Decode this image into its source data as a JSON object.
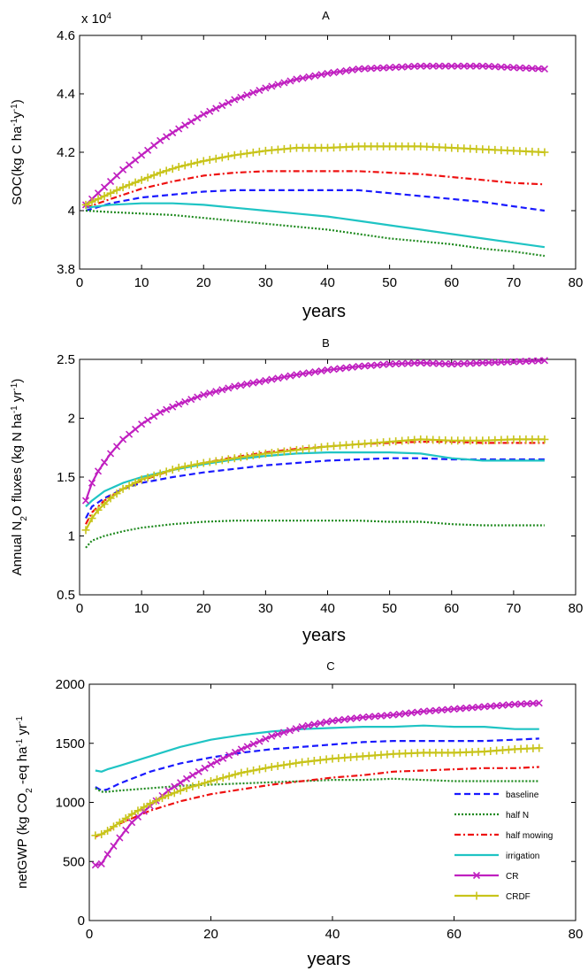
{
  "styles": {
    "baseline": {
      "color": "#1a1aff",
      "dash": "7,4",
      "marker": "none"
    },
    "half_n": {
      "color": "#1f8a1f",
      "dash": "2,2",
      "marker": "none"
    },
    "half_mowing": {
      "color": "#ee1111",
      "dash": "7,3,2,3",
      "marker": "none"
    },
    "irrigation": {
      "color": "#1fc4c4",
      "dash": "",
      "marker": "none"
    },
    "cr": {
      "color": "#c020c0",
      "dash": "",
      "marker": "x"
    },
    "crdf": {
      "color": "#c8c41a",
      "dash": "",
      "marker": "plus"
    }
  },
  "chart_data": [
    {
      "type": "line",
      "title": "A",
      "xlabel": "years",
      "ylabel": "SOC(kg C ha-1y-1)",
      "ylabel_parts": {
        "main": "SOC(kg C ha",
        "sup1": "-1",
        "mid": "y",
        "sup2": "-1",
        "end": ")"
      },
      "multiplier": {
        "base": "x 10",
        "exp": "4"
      },
      "xlim": [
        0,
        80
      ],
      "ylim": [
        3.8,
        4.6
      ],
      "xticks": [
        0,
        10,
        20,
        30,
        40,
        50,
        60,
        70,
        80
      ],
      "yticks": [
        3.8,
        4,
        4.2,
        4.4,
        4.6
      ],
      "ytick_labels": [
        "3.8",
        "4",
        "4.2",
        "4.4",
        "4.6"
      ],
      "series": [
        {
          "key": "baseline",
          "x": [
            1,
            5,
            10,
            15,
            20,
            25,
            30,
            35,
            40,
            45,
            50,
            55,
            60,
            65,
            70,
            75
          ],
          "y": [
            4.0,
            4.025,
            4.045,
            4.055,
            4.065,
            4.07,
            4.07,
            4.07,
            4.07,
            4.07,
            4.06,
            4.05,
            4.04,
            4.03,
            4.015,
            4.0
          ]
        },
        {
          "key": "half_n",
          "x": [
            1,
            5,
            10,
            15,
            20,
            25,
            30,
            35,
            40,
            45,
            50,
            55,
            60,
            65,
            70,
            75
          ],
          "y": [
            4.0,
            3.995,
            3.99,
            3.985,
            3.975,
            3.965,
            3.955,
            3.945,
            3.935,
            3.92,
            3.905,
            3.895,
            3.885,
            3.87,
            3.86,
            3.845
          ]
        },
        {
          "key": "half_mowing",
          "x": [
            1,
            5,
            10,
            15,
            20,
            25,
            30,
            35,
            40,
            45,
            50,
            55,
            60,
            65,
            70,
            75
          ],
          "y": [
            4.01,
            4.04,
            4.075,
            4.1,
            4.12,
            4.13,
            4.135,
            4.135,
            4.135,
            4.135,
            4.13,
            4.125,
            4.115,
            4.105,
            4.095,
            4.09
          ]
        },
        {
          "key": "irrigation",
          "x": [
            1,
            5,
            10,
            15,
            20,
            25,
            30,
            35,
            40,
            45,
            50,
            55,
            60,
            65,
            70,
            75
          ],
          "y": [
            4.01,
            4.02,
            4.025,
            4.025,
            4.02,
            4.01,
            4.0,
            3.99,
            3.98,
            3.965,
            3.95,
            3.935,
            3.92,
            3.905,
            3.89,
            3.875
          ]
        },
        {
          "key": "cr",
          "x": [
            1,
            3,
            5,
            7,
            10,
            13,
            16,
            20,
            25,
            30,
            35,
            40,
            45,
            50,
            55,
            60,
            65,
            70,
            75
          ],
          "y": [
            4.02,
            4.06,
            4.1,
            4.14,
            4.19,
            4.24,
            4.28,
            4.33,
            4.38,
            4.42,
            4.45,
            4.47,
            4.485,
            4.49,
            4.495,
            4.495,
            4.495,
            4.49,
            4.485
          ]
        },
        {
          "key": "crdf",
          "x": [
            1,
            3,
            5,
            7,
            10,
            13,
            16,
            20,
            25,
            30,
            35,
            40,
            45,
            50,
            55,
            60,
            65,
            70,
            75
          ],
          "y": [
            4.02,
            4.04,
            4.06,
            4.08,
            4.105,
            4.13,
            4.15,
            4.17,
            4.19,
            4.205,
            4.215,
            4.215,
            4.22,
            4.22,
            4.22,
            4.215,
            4.21,
            4.205,
            4.2
          ]
        }
      ]
    },
    {
      "type": "line",
      "title": "B",
      "xlabel": "years",
      "ylabel": "Annual N2O fluxes (kg N ha-1 yr-1)",
      "ylabel_parts": {
        "p1": "Annual N",
        "sub": "2",
        "p2": "O fluxes (kg N ha",
        "sup1": "-1",
        "p3": " yr",
        "sup2": "-1",
        "p4": ")"
      },
      "xlim": [
        0,
        80
      ],
      "ylim": [
        0.5,
        2.5
      ],
      "xticks": [
        0,
        10,
        20,
        30,
        40,
        50,
        60,
        70,
        80
      ],
      "yticks": [
        0.5,
        1,
        1.5,
        2,
        2.5
      ],
      "ytick_labels": [
        "0.5",
        "1",
        "1.5",
        "2",
        "2.5"
      ],
      "series": [
        {
          "key": "baseline",
          "x": [
            1,
            2,
            4,
            7,
            10,
            15,
            20,
            25,
            30,
            35,
            40,
            45,
            50,
            55,
            60,
            65,
            70,
            75
          ],
          "y": [
            1.15,
            1.25,
            1.32,
            1.4,
            1.45,
            1.5,
            1.54,
            1.57,
            1.6,
            1.62,
            1.64,
            1.65,
            1.66,
            1.66,
            1.65,
            1.65,
            1.65,
            1.65
          ]
        },
        {
          "key": "half_n",
          "x": [
            1,
            2,
            4,
            7,
            10,
            15,
            20,
            25,
            30,
            35,
            40,
            45,
            50,
            55,
            60,
            65,
            70,
            75
          ],
          "y": [
            0.9,
            0.96,
            1.0,
            1.04,
            1.07,
            1.1,
            1.12,
            1.13,
            1.13,
            1.13,
            1.13,
            1.13,
            1.12,
            1.12,
            1.1,
            1.09,
            1.09,
            1.09
          ]
        },
        {
          "key": "half_mowing",
          "x": [
            1,
            2,
            4,
            7,
            10,
            15,
            20,
            25,
            30,
            35,
            40,
            45,
            50,
            55,
            60,
            65,
            70,
            75
          ],
          "y": [
            1.1,
            1.2,
            1.3,
            1.4,
            1.47,
            1.56,
            1.62,
            1.67,
            1.71,
            1.74,
            1.76,
            1.78,
            1.79,
            1.8,
            1.8,
            1.79,
            1.79,
            1.79
          ]
        },
        {
          "key": "irrigation",
          "x": [
            1,
            2,
            4,
            7,
            10,
            15,
            20,
            25,
            30,
            35,
            40,
            45,
            50,
            55,
            60,
            65,
            70,
            75
          ],
          "y": [
            1.25,
            1.3,
            1.38,
            1.45,
            1.5,
            1.56,
            1.61,
            1.65,
            1.68,
            1.7,
            1.71,
            1.71,
            1.71,
            1.7,
            1.66,
            1.64,
            1.64,
            1.64
          ]
        },
        {
          "key": "cr",
          "x": [
            1,
            2,
            3,
            5,
            7,
            10,
            13,
            16,
            20,
            25,
            30,
            35,
            40,
            45,
            50,
            55,
            60,
            65,
            70,
            75
          ],
          "y": [
            1.3,
            1.45,
            1.55,
            1.7,
            1.82,
            1.95,
            2.05,
            2.12,
            2.2,
            2.27,
            2.32,
            2.37,
            2.41,
            2.44,
            2.46,
            2.47,
            2.46,
            2.47,
            2.48,
            2.49
          ]
        },
        {
          "key": "crdf",
          "x": [
            1,
            2,
            3,
            5,
            7,
            10,
            13,
            16,
            20,
            25,
            30,
            35,
            40,
            45,
            50,
            55,
            60,
            65,
            70,
            75
          ],
          "y": [
            1.05,
            1.15,
            1.22,
            1.32,
            1.4,
            1.48,
            1.53,
            1.58,
            1.62,
            1.66,
            1.7,
            1.73,
            1.76,
            1.78,
            1.8,
            1.82,
            1.81,
            1.81,
            1.82,
            1.82
          ]
        }
      ]
    },
    {
      "type": "line",
      "title": "C",
      "xlabel": "years",
      "ylabel": "netGWP (kg CO2 -eq ha-1 yr-1)",
      "ylabel_parts": {
        "p1": "netGWP (kg CO",
        "sub": "2",
        "p2": " -eq ha",
        "sup1": "-1",
        "p3": " yr",
        "sup2": "-1"
      },
      "xlim": [
        0,
        80
      ],
      "ylim": [
        0,
        2000
      ],
      "xticks": [
        0,
        20,
        40,
        60,
        80
      ],
      "yticks": [
        0,
        500,
        1000,
        1500,
        2000
      ],
      "ytick_labels": [
        "0",
        "500",
        "1000",
        "1500",
        "2000"
      ],
      "legend": {
        "placement": "bottom-right",
        "entries": [
          {
            "key": "baseline",
            "label": "baseline"
          },
          {
            "key": "half_n",
            "label": "half N"
          },
          {
            "key": "half_mowing",
            "label": "half  mowing"
          },
          {
            "key": "irrigation",
            "label": "irrigation"
          },
          {
            "key": "cr",
            "label": "CR"
          },
          {
            "key": "crdf",
            "label": "CRDF"
          }
        ]
      },
      "series": [
        {
          "key": "baseline",
          "x": [
            1,
            2,
            3,
            5,
            10,
            15,
            20,
            25,
            30,
            35,
            40,
            45,
            50,
            55,
            60,
            65,
            70,
            74
          ],
          "y": [
            1130,
            1100,
            1110,
            1160,
            1260,
            1330,
            1380,
            1420,
            1450,
            1470,
            1490,
            1510,
            1520,
            1520,
            1520,
            1520,
            1530,
            1540
          ]
        },
        {
          "key": "half_n",
          "x": [
            1,
            2,
            3,
            5,
            10,
            15,
            20,
            25,
            30,
            35,
            40,
            45,
            50,
            55,
            60,
            65,
            70,
            74
          ],
          "y": [
            1120,
            1090,
            1090,
            1100,
            1120,
            1140,
            1150,
            1160,
            1170,
            1180,
            1190,
            1190,
            1200,
            1190,
            1180,
            1180,
            1180,
            1180
          ]
        },
        {
          "key": "half_mowing",
          "x": [
            1,
            2,
            3,
            5,
            10,
            15,
            20,
            25,
            30,
            35,
            40,
            45,
            50,
            55,
            60,
            65,
            70,
            74
          ],
          "y": [
            710,
            730,
            760,
            820,
            930,
            1010,
            1070,
            1110,
            1150,
            1180,
            1210,
            1230,
            1260,
            1270,
            1280,
            1290,
            1290,
            1300
          ]
        },
        {
          "key": "irrigation",
          "x": [
            1,
            2,
            3,
            5,
            10,
            15,
            20,
            25,
            30,
            35,
            40,
            45,
            50,
            55,
            60,
            65,
            70,
            74
          ],
          "y": [
            1270,
            1260,
            1280,
            1310,
            1390,
            1470,
            1530,
            1570,
            1600,
            1620,
            1630,
            1640,
            1640,
            1650,
            1640,
            1640,
            1620,
            1620
          ]
        },
        {
          "key": "cr",
          "x": [
            1,
            2,
            3,
            5,
            7,
            10,
            13,
            16,
            20,
            25,
            30,
            35,
            40,
            45,
            50,
            55,
            60,
            65,
            70,
            74
          ],
          "y": [
            470,
            480,
            560,
            700,
            830,
            970,
            1100,
            1200,
            1320,
            1450,
            1560,
            1640,
            1690,
            1720,
            1740,
            1770,
            1790,
            1810,
            1830,
            1840
          ]
        },
        {
          "key": "crdf",
          "x": [
            1,
            2,
            3,
            5,
            7,
            10,
            13,
            16,
            20,
            25,
            30,
            35,
            40,
            45,
            50,
            55,
            60,
            65,
            70,
            74
          ],
          "y": [
            720,
            730,
            760,
            830,
            900,
            990,
            1060,
            1120,
            1180,
            1250,
            1300,
            1340,
            1370,
            1390,
            1410,
            1420,
            1420,
            1430,
            1450,
            1460
          ]
        }
      ]
    }
  ]
}
